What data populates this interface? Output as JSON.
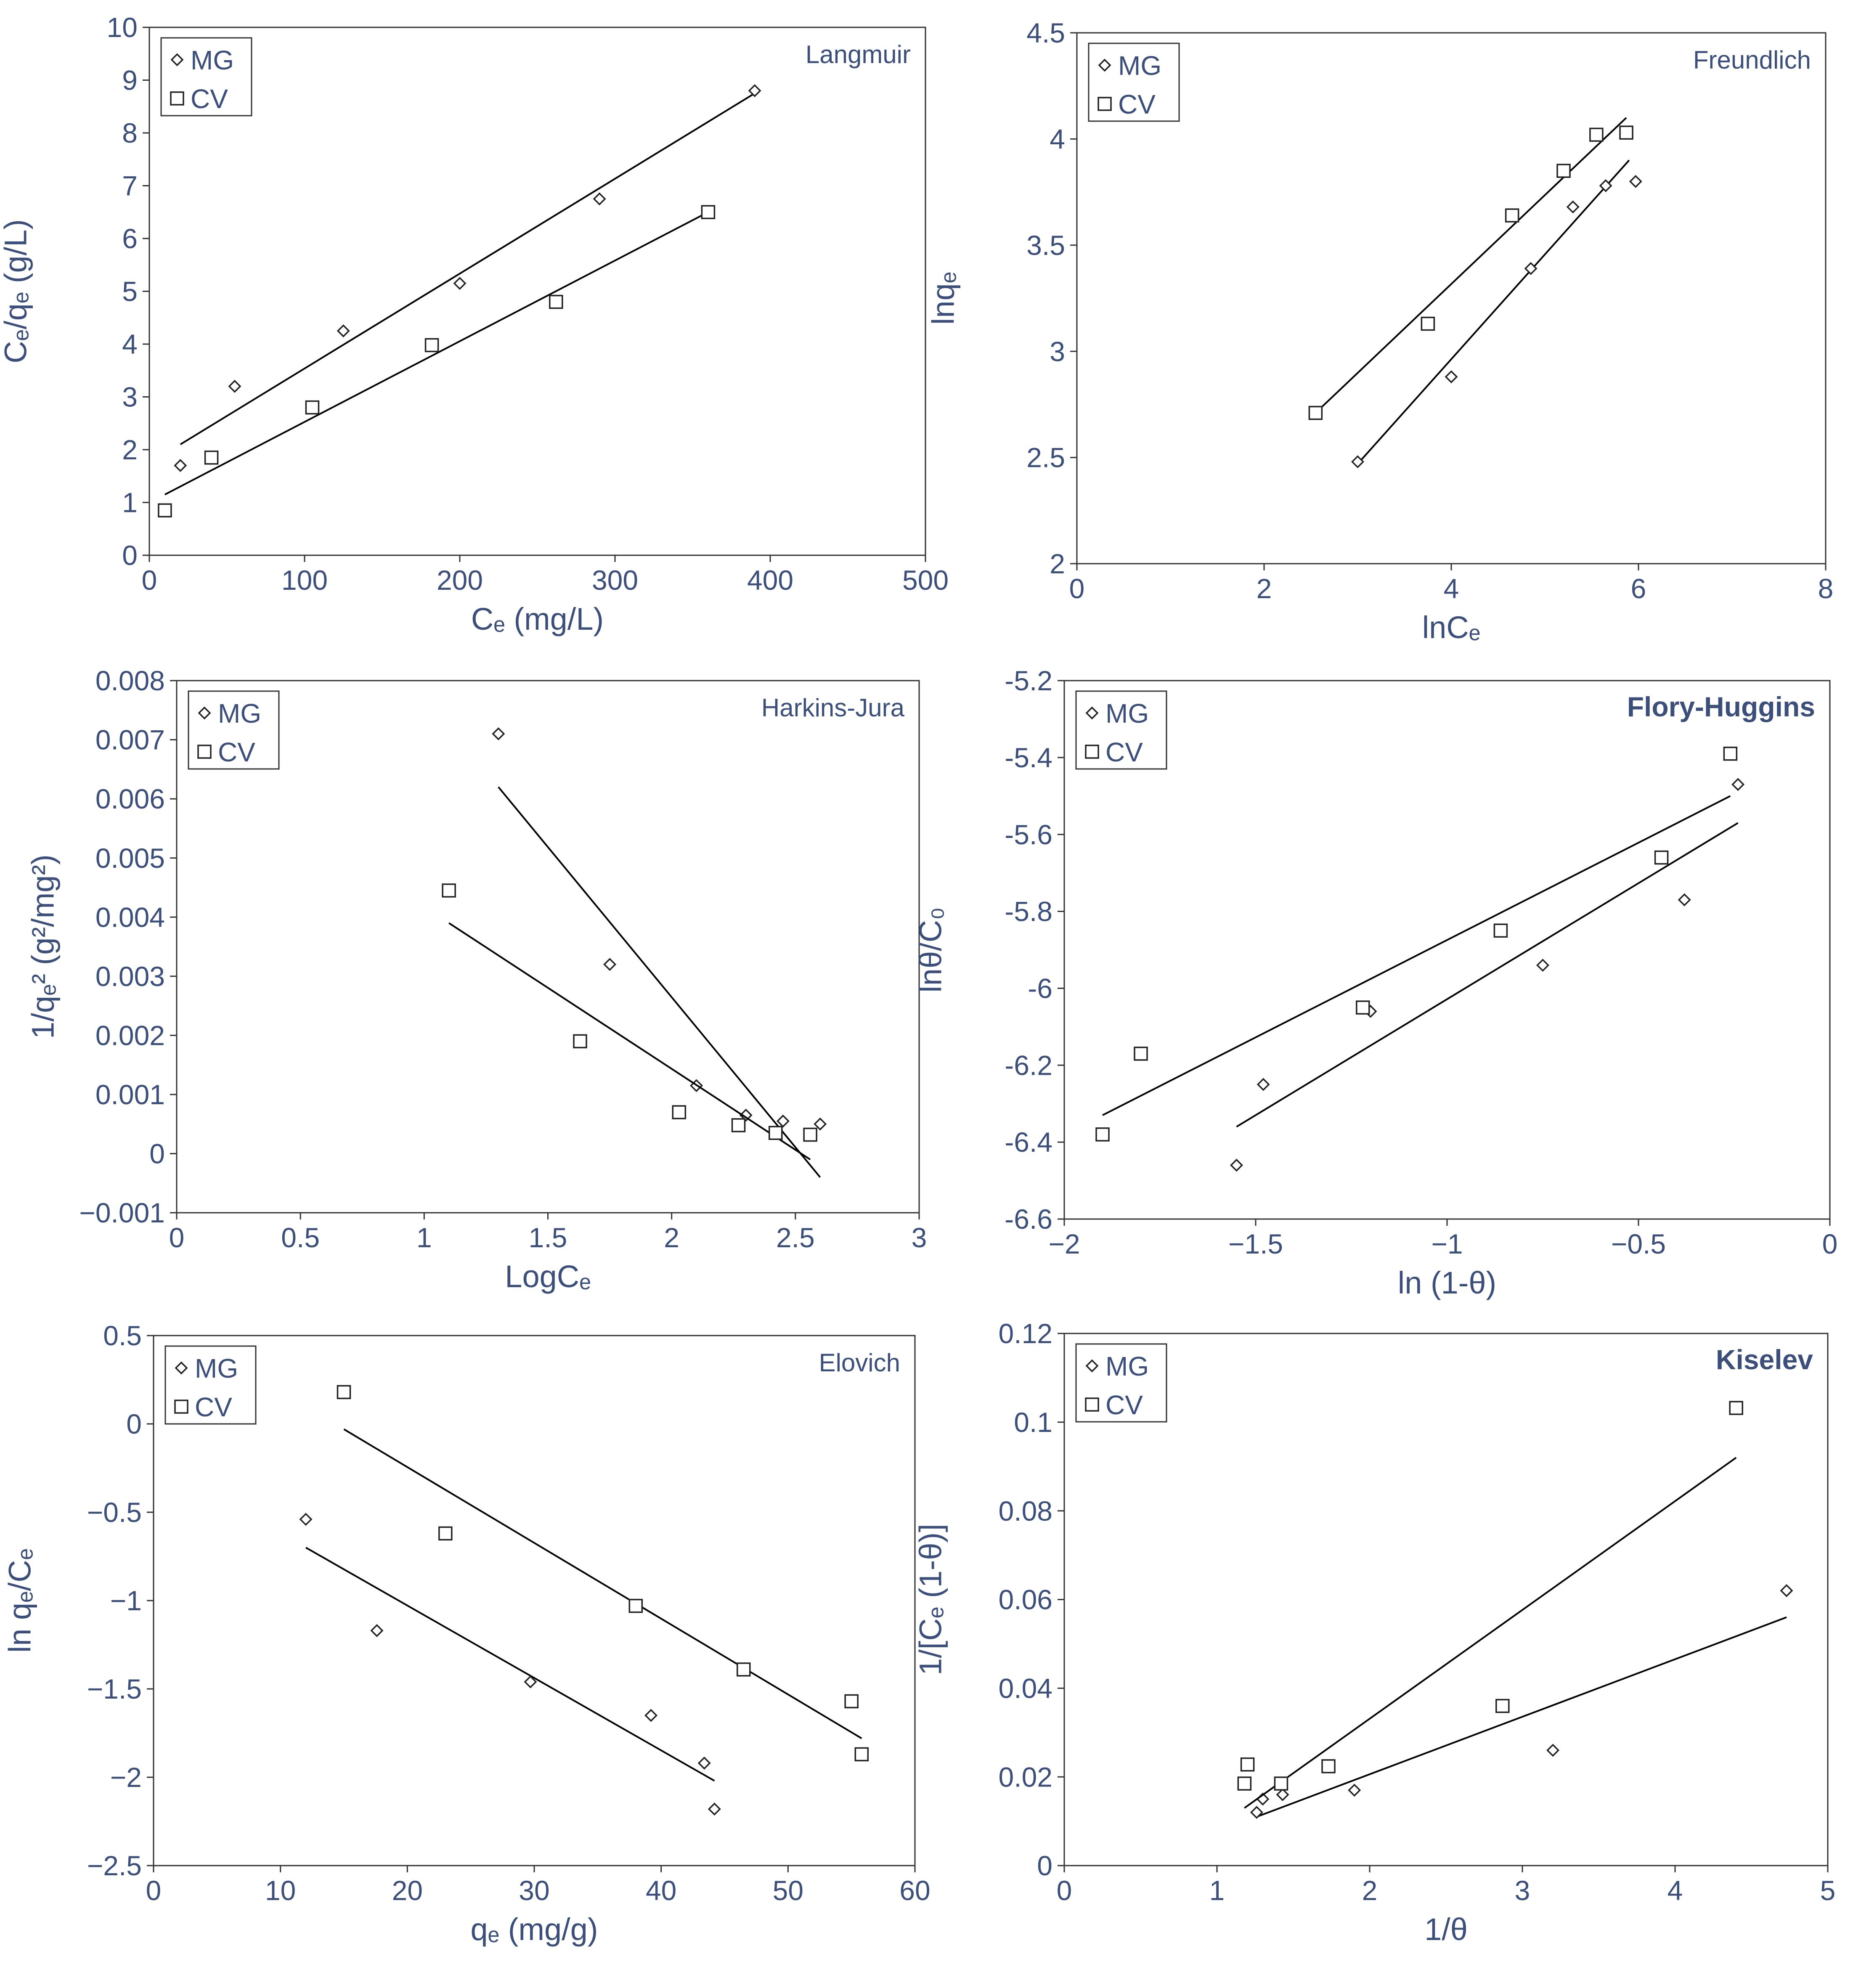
{
  "colors": {
    "text": "#3b4f7a",
    "axis": "#333333",
    "marker": "#222222",
    "line": "#000000"
  },
  "chart_data": [
    {
      "id": "langmuir",
      "type": "scatter",
      "title": "Langmuir",
      "title_bold": false,
      "xlabel": "Cₑ (mg/L)",
      "ylabel": "Cₑ/qₑ (g/L)",
      "xlim": [
        0,
        500
      ],
      "ylim": [
        0,
        10
      ],
      "xticks": [
        0,
        100,
        200,
        300,
        400,
        500
      ],
      "yticks": [
        0,
        1,
        2,
        3,
        4,
        5,
        6,
        7,
        8,
        9,
        10
      ],
      "xtick_labels": [
        "0",
        "100",
        "200",
        "300",
        "400",
        "500"
      ],
      "ytick_labels": [
        "0",
        "1",
        "2",
        "3",
        "4",
        "5",
        "6",
        "7",
        "8",
        "9",
        "10"
      ],
      "legend": [
        "MG",
        "CV"
      ],
      "legend_position": "top-left",
      "series": [
        {
          "name": "MG",
          "marker": "diamond",
          "points": [
            [
              20,
              1.7
            ],
            [
              55,
              3.2
            ],
            [
              125,
              4.25
            ],
            [
              200,
              5.15
            ],
            [
              290,
              6.75
            ],
            [
              390,
              8.8
            ]
          ],
          "fit": [
            [
              20,
              2.1
            ],
            [
              390,
              8.75
            ]
          ]
        },
        {
          "name": "CV",
          "marker": "square",
          "points": [
            [
              10,
              0.85
            ],
            [
              40,
              1.85
            ],
            [
              105,
              2.8
            ],
            [
              182,
              3.98
            ],
            [
              262,
              4.8
            ],
            [
              360,
              6.5
            ]
          ],
          "fit": [
            [
              10,
              1.15
            ],
            [
              360,
              6.5
            ]
          ]
        }
      ]
    },
    {
      "id": "freundlich",
      "type": "scatter",
      "title": "Freundlich",
      "title_bold": false,
      "xlabel": "lnCₑ",
      "ylabel": "lnqₑ",
      "xlim": [
        0,
        8
      ],
      "ylim": [
        2,
        4.5
      ],
      "xticks": [
        0,
        2,
        4,
        6,
        8
      ],
      "yticks": [
        2,
        2.5,
        3,
        3.5,
        4,
        4.5
      ],
      "xtick_labels": [
        "0",
        "2",
        "4",
        "6",
        "8"
      ],
      "ytick_labels": [
        "2",
        "2.5",
        "3",
        "3.5",
        "4",
        "4.5"
      ],
      "legend": [
        "MG",
        "CV"
      ],
      "legend_position": "top-left",
      "series": [
        {
          "name": "MG",
          "marker": "diamond",
          "points": [
            [
              3.0,
              2.48
            ],
            [
              4.0,
              2.88
            ],
            [
              4.85,
              3.39
            ],
            [
              5.3,
              3.68
            ],
            [
              5.65,
              3.78
            ],
            [
              5.97,
              3.8
            ]
          ],
          "fit": [
            [
              3.0,
              2.47
            ],
            [
              5.9,
              3.9
            ]
          ]
        },
        {
          "name": "CV",
          "marker": "square",
          "points": [
            [
              2.55,
              2.71
            ],
            [
              3.75,
              3.13
            ],
            [
              4.65,
              3.64
            ],
            [
              5.2,
              3.85
            ],
            [
              5.55,
              4.02
            ],
            [
              5.87,
              4.03
            ]
          ],
          "fit": [
            [
              2.55,
              2.71
            ],
            [
              5.87,
              4.1
            ]
          ]
        }
      ]
    },
    {
      "id": "harkins-jura",
      "type": "scatter",
      "title": "Harkins-Jura",
      "title_bold": false,
      "xlabel": "LogCₑ",
      "ylabel": "1/qₑ² (g²/mg²)",
      "xlim": [
        0,
        3
      ],
      "ylim": [
        -0.001,
        0.008
      ],
      "xticks": [
        0,
        0.5,
        1,
        1.5,
        2,
        2.5,
        3
      ],
      "yticks": [
        -0.001,
        0,
        0.001,
        0.002,
        0.003,
        0.004,
        0.005,
        0.006,
        0.007,
        0.008
      ],
      "xtick_labels": [
        "0",
        "0.5",
        "1",
        "1.5",
        "2",
        "2.5",
        "3"
      ],
      "ytick_labels": [
        "−0.001",
        "0",
        "0.001",
        "0.002",
        "0.003",
        "0.004",
        "0.005",
        "0.006",
        "0.007",
        "0.008"
      ],
      "legend": [
        "MG",
        "CV"
      ],
      "legend_position": "top-left",
      "series": [
        {
          "name": "MG",
          "marker": "diamond",
          "points": [
            [
              1.3,
              0.0071
            ],
            [
              1.75,
              0.0032
            ],
            [
              2.1,
              0.00115
            ],
            [
              2.3,
              0.00065
            ],
            [
              2.45,
              0.00055
            ],
            [
              2.6,
              0.0005
            ]
          ],
          "fit": [
            [
              1.3,
              0.0062
            ],
            [
              2.6,
              -0.0004
            ]
          ]
        },
        {
          "name": "CV",
          "marker": "square",
          "points": [
            [
              1.1,
              0.00445
            ],
            [
              1.63,
              0.0019
            ],
            [
              2.03,
              0.0007
            ],
            [
              2.27,
              0.00048
            ],
            [
              2.42,
              0.00035
            ],
            [
              2.56,
              0.00032
            ]
          ],
          "fit": [
            [
              1.1,
              0.0039
            ],
            [
              2.56,
              -0.0001
            ]
          ]
        }
      ]
    },
    {
      "id": "flory-huggins",
      "type": "scatter",
      "title": "Flory-Huggins",
      "title_bold": true,
      "xlabel": "ln (1-θ)",
      "ylabel": "lnθ/C₀",
      "xlim": [
        -2,
        0
      ],
      "ylim": [
        -6.6,
        -5.2
      ],
      "xticks": [
        -2,
        -1.5,
        -1,
        -0.5,
        0
      ],
      "yticks": [
        -6.6,
        -6.4,
        -6.2,
        -6,
        -5.8,
        -5.6,
        -5.4,
        -5.2
      ],
      "xtick_labels": [
        "−2",
        "−1.5",
        "−1",
        "−0.5",
        "0"
      ],
      "ytick_labels": [
        "-6.6",
        "-6.4",
        "-6.2",
        "-6",
        "-5.8",
        "-5.6",
        "-5.4",
        "-5.2"
      ],
      "legend": [
        "MG",
        "CV"
      ],
      "legend_position": "top-left",
      "series": [
        {
          "name": "MG",
          "marker": "diamond",
          "points": [
            [
              -1.55,
              -6.46
            ],
            [
              -1.48,
              -6.25
            ],
            [
              -1.2,
              -6.06
            ],
            [
              -0.75,
              -5.94
            ],
            [
              -0.38,
              -5.77
            ],
            [
              -0.24,
              -5.47
            ]
          ],
          "fit": [
            [
              -1.55,
              -6.36
            ],
            [
              -0.24,
              -5.57
            ]
          ]
        },
        {
          "name": "CV",
          "marker": "square",
          "points": [
            [
              -1.9,
              -6.38
            ],
            [
              -1.8,
              -6.17
            ],
            [
              -1.22,
              -6.05
            ],
            [
              -0.86,
              -5.85
            ],
            [
              -0.44,
              -5.66
            ],
            [
              -0.26,
              -5.39
            ]
          ],
          "fit": [
            [
              -1.9,
              -6.33
            ],
            [
              -0.26,
              -5.5
            ]
          ]
        }
      ]
    },
    {
      "id": "elovich",
      "type": "scatter",
      "title": "Elovich",
      "title_bold": false,
      "xlabel": "qₑ (mg/g)",
      "ylabel": "ln qₑ/Cₑ",
      "xlim": [
        0,
        60
      ],
      "ylim": [
        -2.5,
        0.5
      ],
      "xticks": [
        0,
        10,
        20,
        30,
        40,
        50,
        60
      ],
      "yticks": [
        -2.5,
        -2,
        -1.5,
        -1,
        -0.5,
        0,
        0.5
      ],
      "xtick_labels": [
        "0",
        "10",
        "20",
        "30",
        "40",
        "50",
        "60"
      ],
      "ytick_labels": [
        "−2.5",
        "−2",
        "−1.5",
        "−1",
        "−0.5",
        "0",
        "0.5"
      ],
      "legend": [
        "MG",
        "CV"
      ],
      "legend_position": "top-left",
      "series": [
        {
          "name": "MG",
          "marker": "diamond",
          "points": [
            [
              12,
              -0.54
            ],
            [
              17.6,
              -1.17
            ],
            [
              29.7,
              -1.46
            ],
            [
              39.2,
              -1.65
            ],
            [
              43.4,
              -1.92
            ],
            [
              44.2,
              -2.18
            ]
          ],
          "fit": [
            [
              12,
              -0.7
            ],
            [
              44.2,
              -2.02
            ]
          ]
        },
        {
          "name": "CV",
          "marker": "square",
          "points": [
            [
              15,
              0.18
            ],
            [
              23,
              -0.62
            ],
            [
              38,
              -1.03
            ],
            [
              46.5,
              -1.39
            ],
            [
              55,
              -1.57
            ],
            [
              55.8,
              -1.87
            ]
          ],
          "fit": [
            [
              15,
              -0.03
            ],
            [
              55.8,
              -1.78
            ]
          ]
        }
      ]
    },
    {
      "id": "kiselev",
      "type": "scatter",
      "title": "Kiselev",
      "title_bold": true,
      "xlabel": "1/θ",
      "ylabel": "1/[Cₑ (1-θ)]",
      "xlim": [
        0,
        5
      ],
      "ylim": [
        0,
        0.12
      ],
      "xticks": [
        0,
        1,
        2,
        3,
        4,
        5
      ],
      "yticks": [
        0,
        0.02,
        0.04,
        0.06,
        0.08,
        0.1,
        0.12
      ],
      "xtick_labels": [
        "0",
        "1",
        "2",
        "3",
        "4",
        "5"
      ],
      "ytick_labels": [
        "0",
        "0.02",
        "0.04",
        "0.06",
        "0.08",
        "0.1",
        "0.12"
      ],
      "legend": [
        "MG",
        "CV"
      ],
      "legend_position": "top-left",
      "series": [
        {
          "name": "MG",
          "marker": "diamond",
          "points": [
            [
              1.26,
              0.012
            ],
            [
              1.3,
              0.015
            ],
            [
              1.43,
              0.016
            ],
            [
              1.9,
              0.017
            ],
            [
              3.2,
              0.026
            ],
            [
              4.73,
              0.062
            ]
          ],
          "fit": [
            [
              1.26,
              0.011
            ],
            [
              4.73,
              0.056
            ]
          ]
        },
        {
          "name": "CV",
          "marker": "square",
          "points": [
            [
              1.18,
              0.0185
            ],
            [
              1.2,
              0.0228
            ],
            [
              1.42,
              0.0185
            ],
            [
              1.73,
              0.0224
            ],
            [
              2.87,
              0.036
            ],
            [
              4.4,
              0.1032
            ]
          ],
          "fit": [
            [
              1.18,
              0.013
            ],
            [
              4.4,
              0.092
            ]
          ]
        }
      ]
    }
  ]
}
